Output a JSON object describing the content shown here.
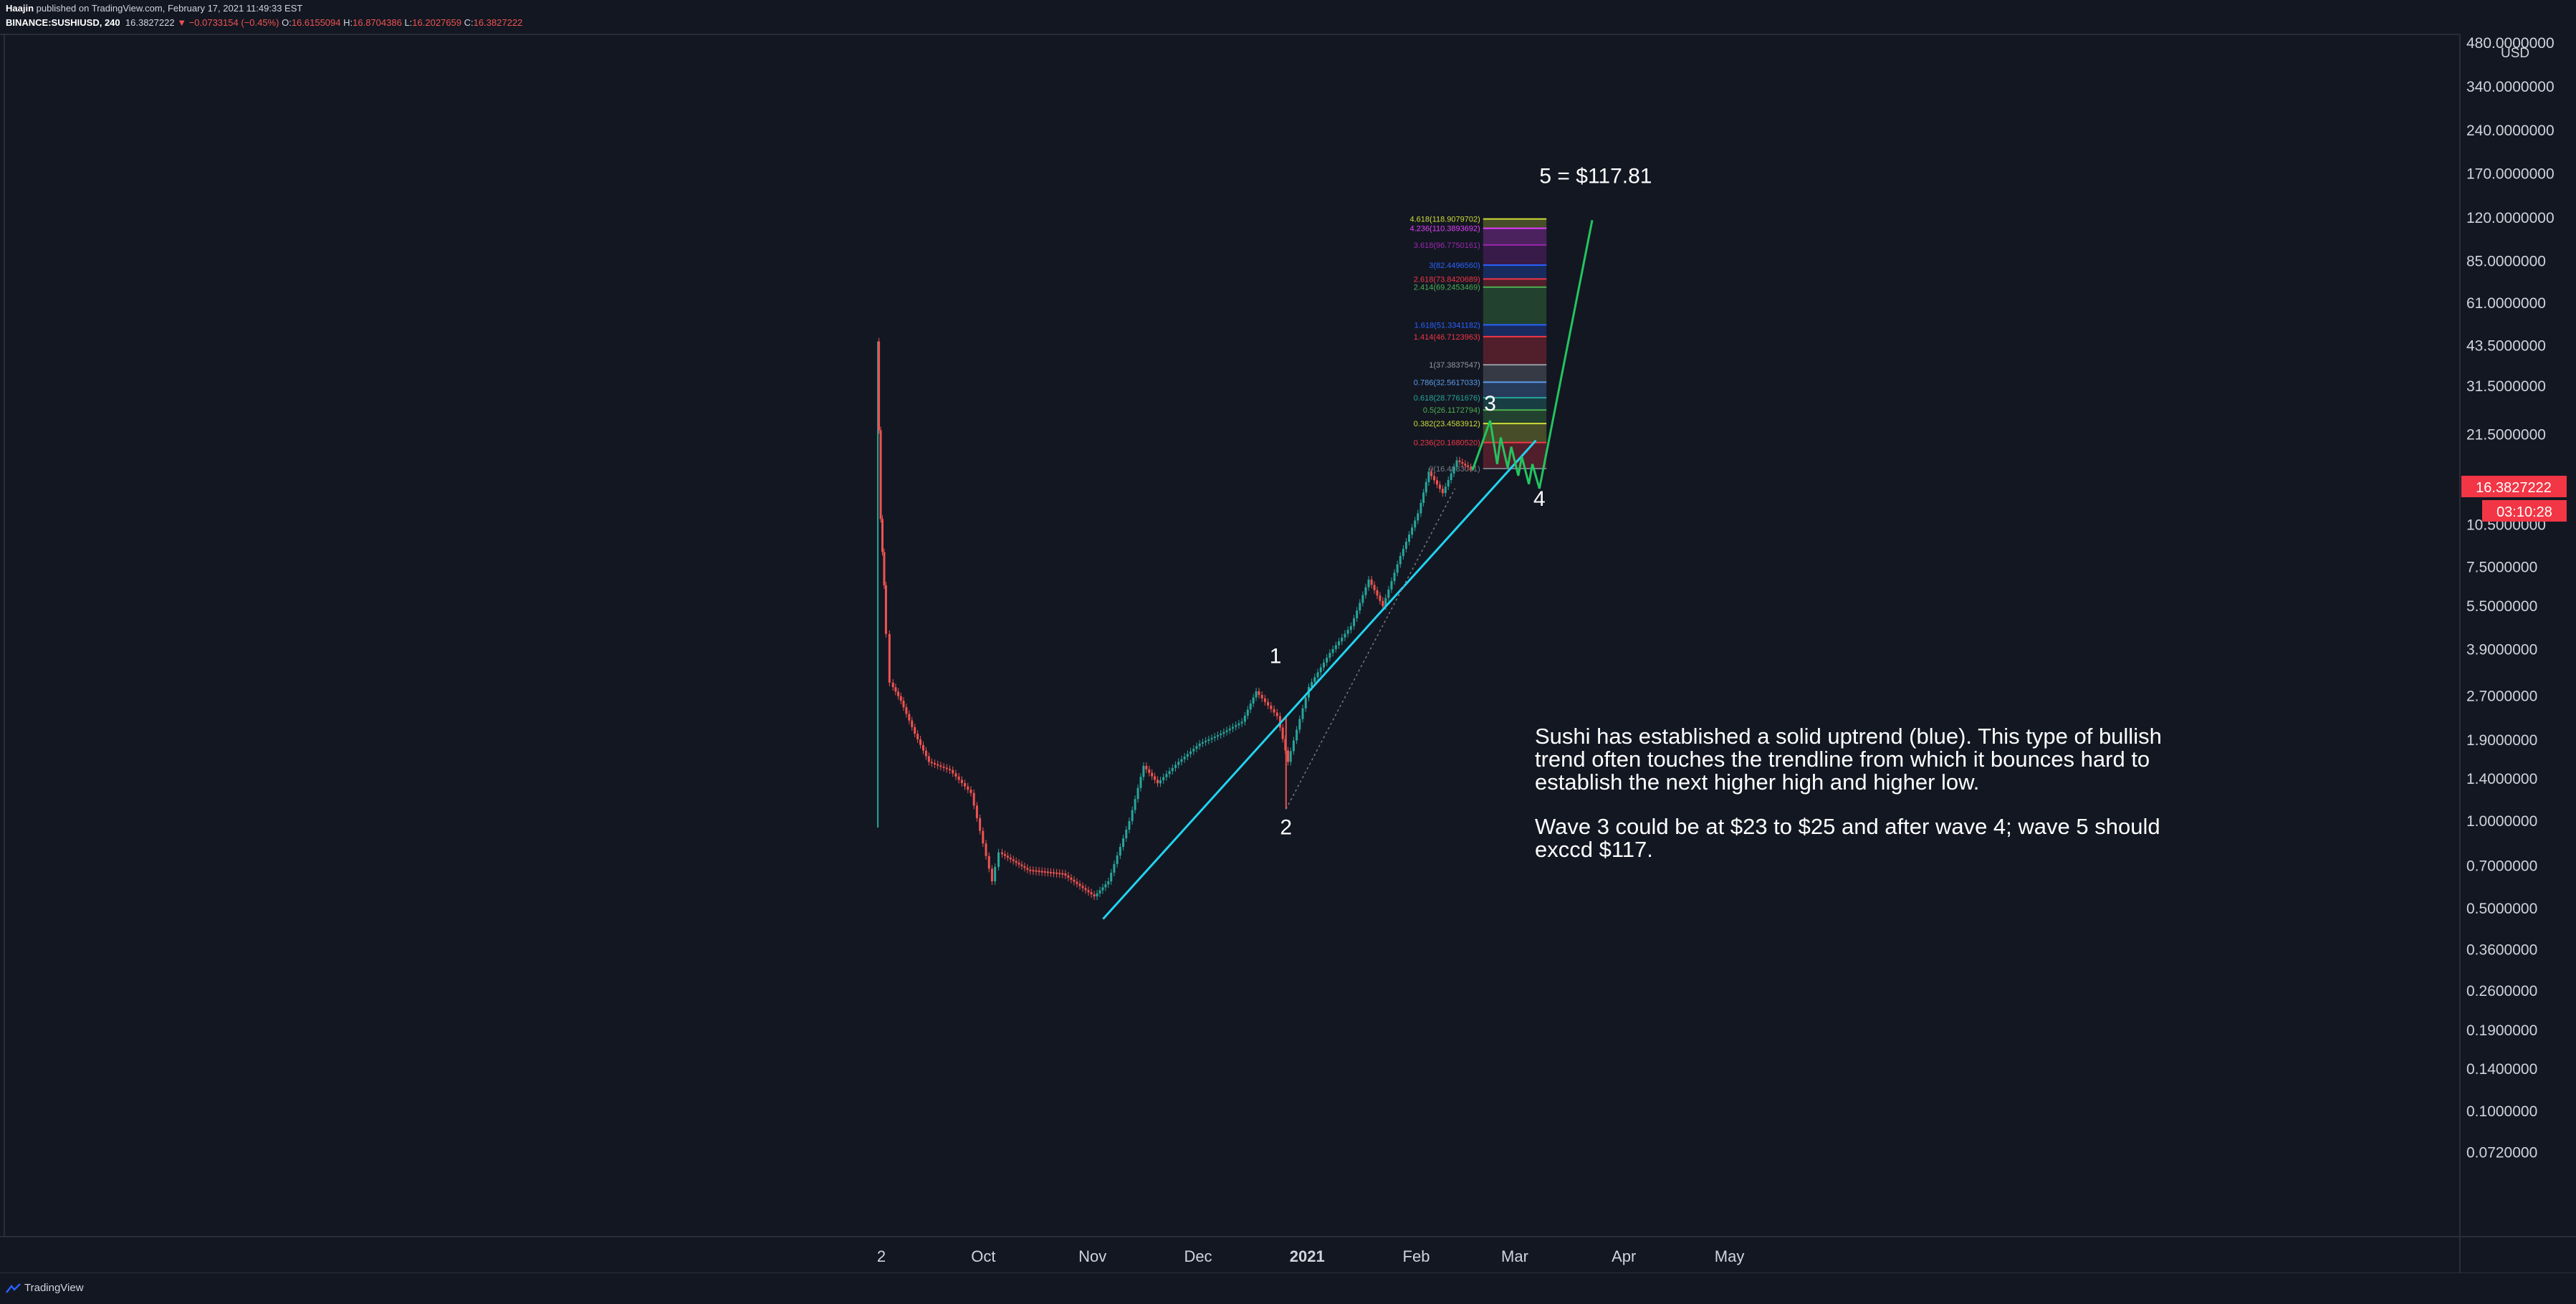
{
  "header": {
    "author": "Haajin",
    "published_text": " published on TradingView.com, February 17, 2021 11:49:33 EST",
    "symbol": "BINANCE:SUSHIUSD, 240",
    "last": "16.3827222",
    "change": "▼ −0.0733154 (−0.45%)",
    "o_label": "O:",
    "o_value": "16.6155094",
    "h_label": "H:",
    "h_value": "16.8704386",
    "l_label": "L:",
    "l_value": "16.2027659",
    "c_label": "C:",
    "c_value": "16.3827222"
  },
  "footer": {
    "brand": "TradingView",
    "icon": "tradingview-logo-icon"
  },
  "chart_data": {
    "type": "candlestick",
    "symbol": "SUSHIUSD",
    "exchange": "BINANCE",
    "interval": "240",
    "y_scale": "log",
    "currency_label": "USD",
    "y_ticks": [
      "480.0000000",
      "340.0000000",
      "240.0000000",
      "170.0000000",
      "120.0000000",
      "85.0000000",
      "61.0000000",
      "43.5000000",
      "31.5000000",
      "21.5000000",
      "10.5000000",
      "7.5000000",
      "5.5000000",
      "3.9000000",
      "2.7000000",
      "1.9000000",
      "1.4000000",
      "1.0000000",
      "0.7000000",
      "0.5000000",
      "0.3600000",
      "0.2600000",
      "0.1900000",
      "0.1400000",
      "0.1000000",
      "0.0720000"
    ],
    "x_labels": [
      "2",
      "Oct",
      "Nov",
      "Dec",
      "2021",
      "Feb",
      "Mar",
      "Apr",
      "May"
    ],
    "current_price": "16.3827222",
    "countdown": "03:10:28",
    "price_path": [
      {
        "date": "2020-09-01",
        "price": 45
      },
      {
        "date": "2020-09-02",
        "price": 11
      },
      {
        "date": "2020-09-03",
        "price": 6.5
      },
      {
        "date": "2020-09-05",
        "price": 3.0
      },
      {
        "date": "2020-09-08",
        "price": 2.6
      },
      {
        "date": "2020-09-12",
        "price": 2.0
      },
      {
        "date": "2020-09-16",
        "price": 1.6
      },
      {
        "date": "2020-09-22",
        "price": 1.5
      },
      {
        "date": "2020-09-28",
        "price": 1.25
      },
      {
        "date": "2020-10-04",
        "price": 0.62
      },
      {
        "date": "2020-10-06",
        "price": 0.78
      },
      {
        "date": "2020-10-14",
        "price": 0.68
      },
      {
        "date": "2020-10-24",
        "price": 0.66
      },
      {
        "date": "2020-11-02",
        "price": 0.55
      },
      {
        "date": "2020-11-06",
        "price": 0.62
      },
      {
        "date": "2020-11-12",
        "price": 1.0
      },
      {
        "date": "2020-11-16",
        "price": 1.55
      },
      {
        "date": "2020-11-20",
        "price": 1.35
      },
      {
        "date": "2020-11-26",
        "price": 1.6
      },
      {
        "date": "2020-12-02",
        "price": 1.85
      },
      {
        "date": "2020-12-08",
        "price": 2.0
      },
      {
        "date": "2020-12-14",
        "price": 2.2
      },
      {
        "date": "2020-12-18",
        "price": 2.8
      },
      {
        "date": "2020-12-24",
        "price": 2.3
      },
      {
        "date": "2020-12-27",
        "price": 1.6
      },
      {
        "date": "2021-01-02",
        "price": 2.9
      },
      {
        "date": "2021-01-08",
        "price": 3.8
      },
      {
        "date": "2021-01-14",
        "price": 4.7
      },
      {
        "date": "2021-01-19",
        "price": 6.8
      },
      {
        "date": "2021-01-23",
        "price": 5.5
      },
      {
        "date": "2021-01-28",
        "price": 8.2
      },
      {
        "date": "2021-02-02",
        "price": 11.5
      },
      {
        "date": "2021-02-05",
        "price": 16
      },
      {
        "date": "2021-02-09",
        "price": 13.5
      },
      {
        "date": "2021-02-13",
        "price": 17.5
      },
      {
        "date": "2021-02-17",
        "price": 16.38
      }
    ],
    "spike_wick": {
      "date": "2020-09-01",
      "low": 0.95,
      "high": 45
    },
    "dip_wick_wave2": {
      "date": "2020-12-26",
      "low": 1.1,
      "high": 2.3
    },
    "fib_levels": [
      {
        "ratio": "4.618",
        "price": "118.9079702",
        "color": "#cddc39"
      },
      {
        "ratio": "4.236",
        "price": "110.3893692",
        "color": "#e040fb"
      },
      {
        "ratio": "3.618",
        "price": "96.7750161",
        "color": "#9c27b0"
      },
      {
        "ratio": "3",
        "price": "82.4496560",
        "color": "#2962ff"
      },
      {
        "ratio": "2.618",
        "price": "73.8420689",
        "color": "#f23645"
      },
      {
        "ratio": "2.414",
        "price": "69.2453469",
        "color": "#4caf50"
      },
      {
        "ratio": "1.618",
        "price": "51.3341182",
        "color": "#2962ff"
      },
      {
        "ratio": "1.414",
        "price": "46.7123963",
        "color": "#f23645"
      },
      {
        "ratio": "1",
        "price": "37.3837547",
        "color": "#9598a1"
      },
      {
        "ratio": "0.786",
        "price": "32.5617033",
        "color": "#5d9cec"
      },
      {
        "ratio": "0.618",
        "price": "28.7761676",
        "color": "#26a69a"
      },
      {
        "ratio": "0.5",
        "price": "26.1172794",
        "color": "#4caf50"
      },
      {
        "ratio": "0.382",
        "price": "23.4583912",
        "color": "#cddc39"
      },
      {
        "ratio": "0.236",
        "price": "20.1680520",
        "color": "#f23645"
      }
    ],
    "fib_base_label": "0(16.4083041)",
    "trendline": {
      "color": "#22d3ee",
      "start": {
        "date": "2020-11-04",
        "price": 0.46
      },
      "end": {
        "date": "2021-03-07",
        "price": 20.5
      }
    },
    "projection": {
      "color": "#22c55e",
      "points": [
        {
          "date": "2021-02-17",
          "price": 16.2
        },
        {
          "date": "2021-02-22",
          "price": 24
        },
        {
          "date": "2021-02-24",
          "price": 17
        },
        {
          "date": "2021-02-25",
          "price": 21
        },
        {
          "date": "2021-02-27",
          "price": 16.5
        },
        {
          "date": "2021-02-28",
          "price": 19.5
        },
        {
          "date": "2021-03-02",
          "price": 15.5
        },
        {
          "date": "2021-03-03",
          "price": 18
        },
        {
          "date": "2021-03-05",
          "price": 14.5
        },
        {
          "date": "2021-03-06",
          "price": 17
        },
        {
          "date": "2021-03-08",
          "price": 14
        },
        {
          "date": "2021-03-23",
          "price": 117.81
        }
      ]
    },
    "wave_labels": [
      {
        "text": "1",
        "date": "2020-12-23",
        "price": 3.5
      },
      {
        "text": "2",
        "date": "2020-12-26",
        "price": 0.9
      },
      {
        "text": "3",
        "date": "2021-02-22",
        "price": 26
      },
      {
        "text": "4",
        "date": "2021-03-08",
        "price": 12.2
      },
      {
        "text": "5 = $117.81",
        "date": "2021-03-08",
        "price": 158
      }
    ],
    "annotations": [
      "Sushi has established a solid uptrend (blue). This type of bullish\ntrend often touches the trendline from which it bounces hard to\nestablish the next higher high and higher low.",
      "Wave 3 could be at $23 to $25 and after wave 4; wave 5 should\nexccd $117."
    ]
  }
}
